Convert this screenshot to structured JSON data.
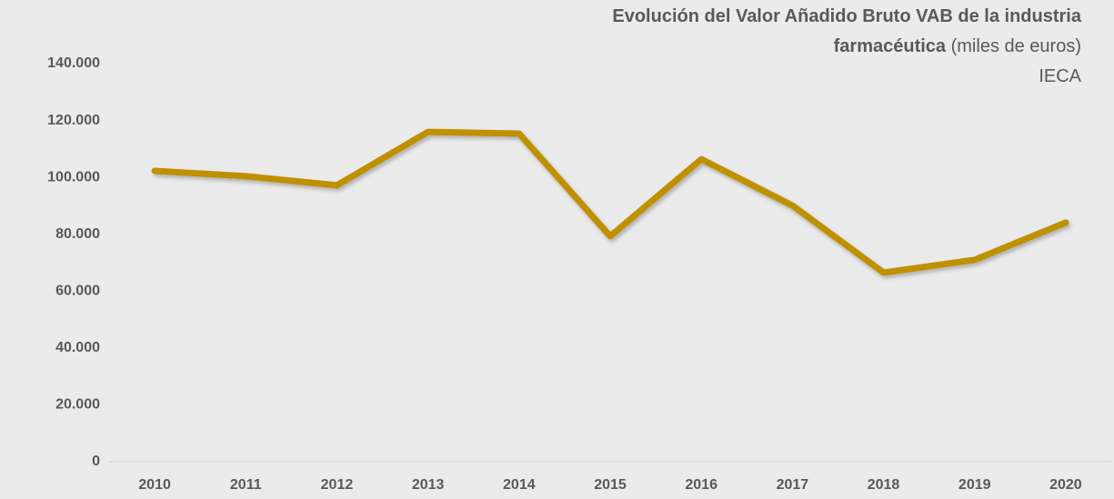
{
  "chart_data": {
    "type": "line",
    "title": "Evolución del Valor Añadido Bruto VAB de la industria farmacéutica",
    "unit": "(miles de euros)",
    "source": "IECA",
    "categories": [
      "2010",
      "2011",
      "2012",
      "2013",
      "2014",
      "2015",
      "2016",
      "2017",
      "2018",
      "2019",
      "2020"
    ],
    "series": [
      {
        "name": "VAB",
        "color": "#bf9000",
        "values": [
          102300,
          100400,
          97200,
          116000,
          115400,
          79300,
          106400,
          90100,
          66500,
          71000,
          84100
        ]
      }
    ],
    "ylim": [
      0,
      140000
    ],
    "yticks": [
      0,
      {
        "value": 20000,
        "label": "20.000"
      },
      {
        "value": 40000,
        "label": "40.000"
      },
      {
        "value": 60000,
        "label": "60.000"
      },
      {
        "value": 80000,
        "label": "80.000"
      },
      {
        "value": 100000,
        "label": "100.000"
      },
      {
        "value": 120000,
        "label": "120.000"
      },
      {
        "value": 140000,
        "label": "140.000"
      }
    ],
    "grid": false
  }
}
